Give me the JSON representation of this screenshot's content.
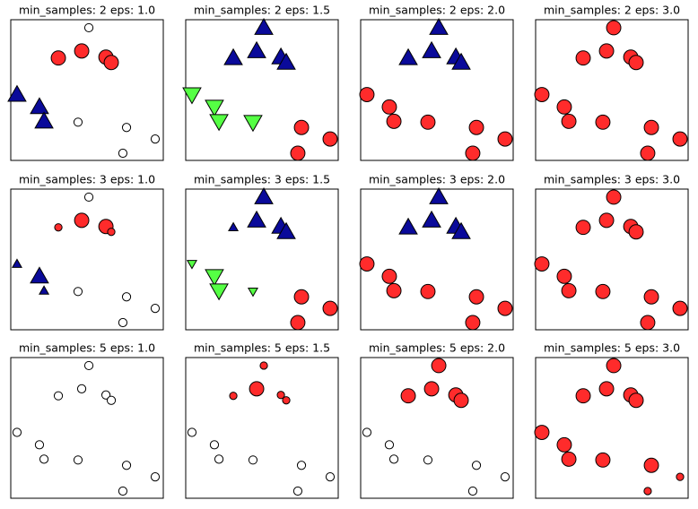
{
  "chart_data": [
    {
      "type": "scatter",
      "title": "min_samples: 2 eps: 1.0",
      "xlim": [
        0,
        100
      ],
      "ylim": [
        0,
        100
      ],
      "x": [
        51.2,
        31.2,
        46.5,
        62.4,
        65.9,
        4.1,
        18.8,
        21.8,
        44.1,
        75.9,
        94.7,
        73.5
      ],
      "y": [
        94.3,
        72.8,
        77.8,
        73.4,
        69.6,
        46.8,
        38.0,
        27.8,
        27.2,
        23.4,
        15.2,
        5.1
      ],
      "colors": [
        "#ffffff",
        "#ff2b2b",
        "#ff2b2b",
        "#ff2b2b",
        "#ff2b2b",
        "#0a0a9a",
        "#0a0a9a",
        "#0a0a9a",
        "#ffffff",
        "#ffffff",
        "#ffffff",
        "#ffffff"
      ],
      "markers": [
        "o",
        "o",
        "o",
        "o",
        "o",
        "^",
        "^",
        "^",
        "o",
        "o",
        "o",
        "o"
      ],
      "sizes": [
        50,
        150,
        150,
        150,
        150,
        150,
        150,
        150,
        50,
        50,
        50,
        50
      ]
    },
    {
      "type": "scatter",
      "title": "min_samples: 2 eps: 1.5",
      "xlim": [
        0,
        100
      ],
      "ylim": [
        0,
        100
      ],
      "x": [
        51.2,
        31.2,
        46.5,
        62.4,
        65.9,
        4.1,
        18.8,
        21.8,
        44.1,
        75.9,
        94.7,
        73.5
      ],
      "y": [
        94.3,
        72.8,
        77.8,
        73.4,
        69.6,
        46.8,
        38.0,
        27.8,
        27.2,
        23.4,
        15.2,
        5.1
      ],
      "colors": [
        "#0a0a9a",
        "#0a0a9a",
        "#0a0a9a",
        "#0a0a9a",
        "#0a0a9a",
        "#55ff44",
        "#55ff44",
        "#55ff44",
        "#55ff44",
        "#ff2b2b",
        "#ff2b2b",
        "#ff2b2b"
      ],
      "markers": [
        "^",
        "^",
        "^",
        "^",
        "^",
        "v",
        "v",
        "v",
        "v",
        "o",
        "o",
        "o"
      ],
      "sizes": [
        150,
        150,
        150,
        150,
        150,
        150,
        150,
        150,
        150,
        150,
        150,
        150
      ]
    },
    {
      "type": "scatter",
      "title": "min_samples: 2 eps: 2.0",
      "xlim": [
        0,
        100
      ],
      "ylim": [
        0,
        100
      ],
      "x": [
        51.2,
        31.2,
        46.5,
        62.4,
        65.9,
        4.1,
        18.8,
        21.8,
        44.1,
        75.9,
        94.7,
        73.5
      ],
      "y": [
        94.3,
        72.8,
        77.8,
        73.4,
        69.6,
        46.8,
        38.0,
        27.8,
        27.2,
        23.4,
        15.2,
        5.1
      ],
      "colors": [
        "#0a0a9a",
        "#0a0a9a",
        "#0a0a9a",
        "#0a0a9a",
        "#0a0a9a",
        "#ff2b2b",
        "#ff2b2b",
        "#ff2b2b",
        "#ff2b2b",
        "#ff2b2b",
        "#ff2b2b",
        "#ff2b2b"
      ],
      "markers": [
        "^",
        "^",
        "^",
        "^",
        "^",
        "o",
        "o",
        "o",
        "o",
        "o",
        "o",
        "o"
      ],
      "sizes": [
        150,
        150,
        150,
        150,
        150,
        150,
        150,
        150,
        150,
        150,
        150,
        150
      ]
    },
    {
      "type": "scatter",
      "title": "min_samples: 2 eps: 3.0",
      "xlim": [
        0,
        100
      ],
      "ylim": [
        0,
        100
      ],
      "x": [
        51.2,
        31.2,
        46.5,
        62.4,
        65.9,
        4.1,
        18.8,
        21.8,
        44.1,
        75.9,
        94.7,
        73.5
      ],
      "y": [
        94.3,
        72.8,
        77.8,
        73.4,
        69.6,
        46.8,
        38.0,
        27.8,
        27.2,
        23.4,
        15.2,
        5.1
      ],
      "colors": [
        "#ff2b2b",
        "#ff2b2b",
        "#ff2b2b",
        "#ff2b2b",
        "#ff2b2b",
        "#ff2b2b",
        "#ff2b2b",
        "#ff2b2b",
        "#ff2b2b",
        "#ff2b2b",
        "#ff2b2b",
        "#ff2b2b"
      ],
      "markers": [
        "o",
        "o",
        "o",
        "o",
        "o",
        "o",
        "o",
        "o",
        "o",
        "o",
        "o",
        "o"
      ],
      "sizes": [
        150,
        150,
        150,
        150,
        150,
        150,
        150,
        150,
        150,
        150,
        150,
        150
      ]
    },
    {
      "type": "scatter",
      "title": "min_samples: 3 eps: 1.0",
      "xlim": [
        0,
        100
      ],
      "ylim": [
        0,
        100
      ],
      "x": [
        51.2,
        31.2,
        46.5,
        62.4,
        65.9,
        4.1,
        18.8,
        21.8,
        44.1,
        75.9,
        94.7,
        73.5
      ],
      "y": [
        94.3,
        72.8,
        77.8,
        73.4,
        69.6,
        46.8,
        38.0,
        27.8,
        27.2,
        23.4,
        15.2,
        5.1
      ],
      "colors": [
        "#ffffff",
        "#ff2b2b",
        "#ff2b2b",
        "#ff2b2b",
        "#ff2b2b",
        "#0a0a9a",
        "#0a0a9a",
        "#0a0a9a",
        "#ffffff",
        "#ffffff",
        "#ffffff",
        "#ffffff"
      ],
      "markers": [
        "o",
        "o",
        "o",
        "o",
        "o",
        "^",
        "^",
        "^",
        "o",
        "o",
        "o",
        "o"
      ],
      "sizes": [
        50,
        40,
        150,
        150,
        40,
        40,
        150,
        40,
        50,
        50,
        50,
        50
      ]
    },
    {
      "type": "scatter",
      "title": "min_samples: 3 eps: 1.5",
      "xlim": [
        0,
        100
      ],
      "ylim": [
        0,
        100
      ],
      "x": [
        51.2,
        31.2,
        46.5,
        62.4,
        65.9,
        4.1,
        18.8,
        21.8,
        44.1,
        75.9,
        94.7,
        73.5
      ],
      "y": [
        94.3,
        72.8,
        77.8,
        73.4,
        69.6,
        46.8,
        38.0,
        27.8,
        27.2,
        23.4,
        15.2,
        5.1
      ],
      "colors": [
        "#0a0a9a",
        "#0a0a9a",
        "#0a0a9a",
        "#0a0a9a",
        "#0a0a9a",
        "#55ff44",
        "#55ff44",
        "#55ff44",
        "#55ff44",
        "#ff2b2b",
        "#ff2b2b",
        "#ff2b2b"
      ],
      "markers": [
        "^",
        "^",
        "^",
        "^",
        "^",
        "v",
        "v",
        "v",
        "v",
        "o",
        "o",
        "o"
      ],
      "sizes": [
        150,
        40,
        150,
        150,
        150,
        40,
        150,
        150,
        40,
        150,
        150,
        150
      ]
    },
    {
      "type": "scatter",
      "title": "min_samples: 3 eps: 2.0",
      "xlim": [
        0,
        100
      ],
      "ylim": [
        0,
        100
      ],
      "x": [
        51.2,
        31.2,
        46.5,
        62.4,
        65.9,
        4.1,
        18.8,
        21.8,
        44.1,
        75.9,
        94.7,
        73.5
      ],
      "y": [
        94.3,
        72.8,
        77.8,
        73.4,
        69.6,
        46.8,
        38.0,
        27.8,
        27.2,
        23.4,
        15.2,
        5.1
      ],
      "colors": [
        "#0a0a9a",
        "#0a0a9a",
        "#0a0a9a",
        "#0a0a9a",
        "#0a0a9a",
        "#ff2b2b",
        "#ff2b2b",
        "#ff2b2b",
        "#ff2b2b",
        "#ff2b2b",
        "#ff2b2b",
        "#ff2b2b"
      ],
      "markers": [
        "^",
        "^",
        "^",
        "^",
        "^",
        "o",
        "o",
        "o",
        "o",
        "o",
        "o",
        "o"
      ],
      "sizes": [
        150,
        150,
        150,
        150,
        150,
        150,
        150,
        150,
        150,
        150,
        150,
        150
      ]
    },
    {
      "type": "scatter",
      "title": "min_samples: 3 eps: 3.0",
      "xlim": [
        0,
        100
      ],
      "ylim": [
        0,
        100
      ],
      "x": [
        51.2,
        31.2,
        46.5,
        62.4,
        65.9,
        4.1,
        18.8,
        21.8,
        44.1,
        75.9,
        94.7,
        73.5
      ],
      "y": [
        94.3,
        72.8,
        77.8,
        73.4,
        69.6,
        46.8,
        38.0,
        27.8,
        27.2,
        23.4,
        15.2,
        5.1
      ],
      "colors": [
        "#ff2b2b",
        "#ff2b2b",
        "#ff2b2b",
        "#ff2b2b",
        "#ff2b2b",
        "#ff2b2b",
        "#ff2b2b",
        "#ff2b2b",
        "#ff2b2b",
        "#ff2b2b",
        "#ff2b2b",
        "#ff2b2b"
      ],
      "markers": [
        "o",
        "o",
        "o",
        "o",
        "o",
        "o",
        "o",
        "o",
        "o",
        "o",
        "o",
        "o"
      ],
      "sizes": [
        150,
        150,
        150,
        150,
        150,
        150,
        150,
        150,
        150,
        150,
        150,
        150
      ]
    },
    {
      "type": "scatter",
      "title": "min_samples: 5 eps: 1.0",
      "xlim": [
        0,
        100
      ],
      "ylim": [
        0,
        100
      ],
      "x": [
        51.2,
        31.2,
        46.5,
        62.4,
        65.9,
        4.1,
        18.8,
        21.8,
        44.1,
        75.9,
        94.7,
        73.5
      ],
      "y": [
        94.3,
        72.8,
        77.8,
        73.4,
        69.6,
        46.8,
        38.0,
        27.8,
        27.2,
        23.4,
        15.2,
        5.1
      ],
      "colors": [
        "#ffffff",
        "#ffffff",
        "#ffffff",
        "#ffffff",
        "#ffffff",
        "#ffffff",
        "#ffffff",
        "#ffffff",
        "#ffffff",
        "#ffffff",
        "#ffffff",
        "#ffffff"
      ],
      "markers": [
        "o",
        "o",
        "o",
        "o",
        "o",
        "o",
        "o",
        "o",
        "o",
        "o",
        "o",
        "o"
      ],
      "sizes": [
        50,
        50,
        50,
        50,
        50,
        50,
        50,
        50,
        50,
        50,
        50,
        50
      ]
    },
    {
      "type": "scatter",
      "title": "min_samples: 5 eps: 1.5",
      "xlim": [
        0,
        100
      ],
      "ylim": [
        0,
        100
      ],
      "x": [
        51.2,
        31.2,
        46.5,
        62.4,
        65.9,
        4.1,
        18.8,
        21.8,
        44.1,
        75.9,
        94.7,
        73.5
      ],
      "y": [
        94.3,
        72.8,
        77.8,
        73.4,
        69.6,
        46.8,
        38.0,
        27.8,
        27.2,
        23.4,
        15.2,
        5.1
      ],
      "colors": [
        "#ff2b2b",
        "#ff2b2b",
        "#ff2b2b",
        "#ff2b2b",
        "#ff2b2b",
        "#ffffff",
        "#ffffff",
        "#ffffff",
        "#ffffff",
        "#ffffff",
        "#ffffff",
        "#ffffff"
      ],
      "markers": [
        "o",
        "o",
        "o",
        "o",
        "o",
        "o",
        "o",
        "o",
        "o",
        "o",
        "o",
        "o"
      ],
      "sizes": [
        40,
        40,
        150,
        40,
        40,
        50,
        50,
        50,
        50,
        50,
        50,
        50
      ]
    },
    {
      "type": "scatter",
      "title": "min_samples: 5 eps: 2.0",
      "xlim": [
        0,
        100
      ],
      "ylim": [
        0,
        100
      ],
      "x": [
        51.2,
        31.2,
        46.5,
        62.4,
        65.9,
        4.1,
        18.8,
        21.8,
        44.1,
        75.9,
        94.7,
        73.5
      ],
      "y": [
        94.3,
        72.8,
        77.8,
        73.4,
        69.6,
        46.8,
        38.0,
        27.8,
        27.2,
        23.4,
        15.2,
        5.1
      ],
      "colors": [
        "#ff2b2b",
        "#ff2b2b",
        "#ff2b2b",
        "#ff2b2b",
        "#ff2b2b",
        "#ffffff",
        "#ffffff",
        "#ffffff",
        "#ffffff",
        "#ffffff",
        "#ffffff",
        "#ffffff"
      ],
      "markers": [
        "o",
        "o",
        "o",
        "o",
        "o",
        "o",
        "o",
        "o",
        "o",
        "o",
        "o",
        "o"
      ],
      "sizes": [
        150,
        150,
        150,
        150,
        150,
        50,
        50,
        50,
        50,
        50,
        50,
        50
      ]
    },
    {
      "type": "scatter",
      "title": "min_samples: 5 eps: 3.0",
      "xlim": [
        0,
        100
      ],
      "ylim": [
        0,
        100
      ],
      "x": [
        51.2,
        31.2,
        46.5,
        62.4,
        65.9,
        4.1,
        18.8,
        21.8,
        44.1,
        75.9,
        94.7,
        73.5
      ],
      "y": [
        94.3,
        72.8,
        77.8,
        73.4,
        69.6,
        46.8,
        38.0,
        27.8,
        27.2,
        23.4,
        15.2,
        5.1
      ],
      "colors": [
        "#ff2b2b",
        "#ff2b2b",
        "#ff2b2b",
        "#ff2b2b",
        "#ff2b2b",
        "#ff2b2b",
        "#ff2b2b",
        "#ff2b2b",
        "#ff2b2b",
        "#ff2b2b",
        "#ff2b2b",
        "#ff2b2b"
      ],
      "markers": [
        "o",
        "o",
        "o",
        "o",
        "o",
        "o",
        "o",
        "o",
        "o",
        "o",
        "o",
        "o"
      ],
      "sizes": [
        150,
        150,
        150,
        150,
        150,
        150,
        150,
        150,
        150,
        150,
        40,
        40
      ]
    }
  ]
}
